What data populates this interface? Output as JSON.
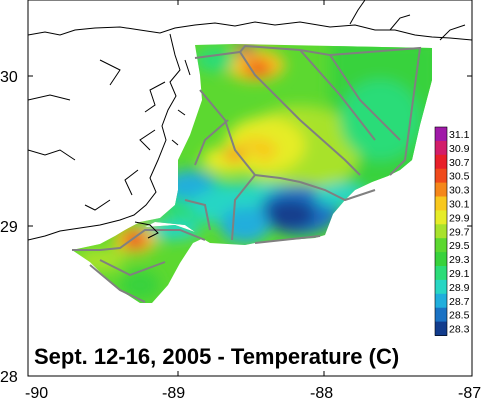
{
  "map": {
    "title": "Sept. 12-16, 2005 - Temperature (C)",
    "x_ticks": [
      "-90",
      "-89",
      "-88",
      "-87"
    ],
    "y_ticks": [
      "30",
      "29",
      "28"
    ],
    "colorbar": {
      "labels": [
        "31.1",
        "30.9",
        "30.7",
        "30.5",
        "30.3",
        "30.1",
        "29.9",
        "29.7",
        "29.5",
        "29.3",
        "29.1",
        "28.9",
        "28.7",
        "28.5",
        "28.3"
      ],
      "colors": [
        "#a01aa8",
        "#d21e6a",
        "#e8202a",
        "#f04a1c",
        "#f5871a",
        "#f8c81e",
        "#e6ec28",
        "#a8e22c",
        "#5cd830",
        "#38d23c",
        "#2cdc78",
        "#28d6c4",
        "#20aedc",
        "#1a72c4",
        "#123c8c"
      ]
    }
  }
}
